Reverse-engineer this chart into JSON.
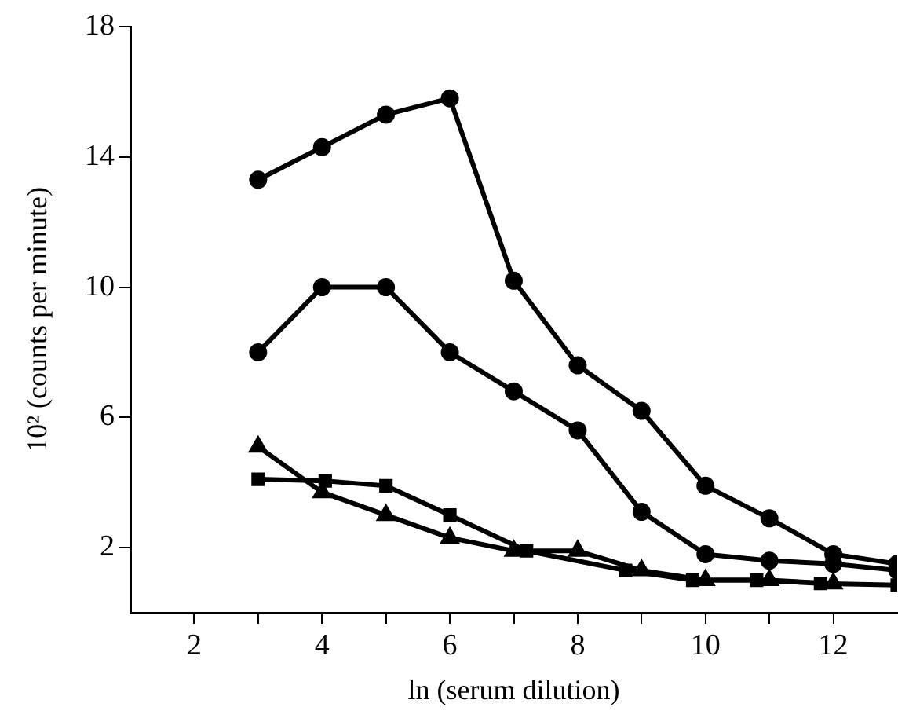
{
  "chart_data": {
    "type": "line",
    "xlabel": "ln (serum dilution)",
    "ylabel": "10² (counts per minute)",
    "xlim": [
      1,
      13
    ],
    "ylim": [
      0,
      18
    ],
    "xticks": [
      2,
      {
        "value": 3,
        "label": null
      },
      4,
      {
        "value": 5,
        "label": null
      },
      6,
      {
        "value": 7,
        "label": null
      },
      8,
      {
        "value": 9,
        "label": null
      },
      10,
      {
        "value": 11,
        "label": null
      },
      12
    ],
    "yticks": [
      2,
      6,
      10,
      14,
      18
    ],
    "grid": false,
    "legend": false,
    "line_style": "solid",
    "series": [
      {
        "color": "#000000",
        "marker": "circle",
        "x": [
          3,
          4,
          5,
          6,
          7,
          8,
          9,
          10,
          11,
          12,
          13
        ],
        "values": [
          13.3,
          14.3,
          15.3,
          15.8,
          10.2,
          7.6,
          6.2,
          3.9,
          2.9,
          1.8,
          1.5
        ]
      },
      {
        "color": "#000000",
        "marker": "circle",
        "x": [
          3,
          4,
          5,
          6,
          7,
          8,
          9,
          10,
          11,
          12,
          13
        ],
        "values": [
          8,
          10,
          10,
          8,
          6.8,
          5.6,
          3.1,
          1.8,
          1.6,
          1.5,
          1.3
        ]
      },
      {
        "color": "#000000",
        "marker": "triangle",
        "x": [
          3,
          4,
          5,
          6,
          7,
          8,
          9,
          10,
          11,
          12
        ],
        "values": [
          5.1,
          3.7,
          3,
          2.3,
          1.9,
          1.9,
          1.3,
          1,
          1,
          0.9
        ]
      },
      {
        "color": "#000000",
        "marker": "square",
        "x": [
          3,
          4.05,
          5,
          6,
          7.2,
          8.75,
          9.8,
          10.8,
          11.8,
          13
        ],
        "values": [
          4.1,
          4.05,
          3.9,
          3,
          1.9,
          1.3,
          1,
          1,
          0.9,
          0.85
        ]
      }
    ]
  }
}
